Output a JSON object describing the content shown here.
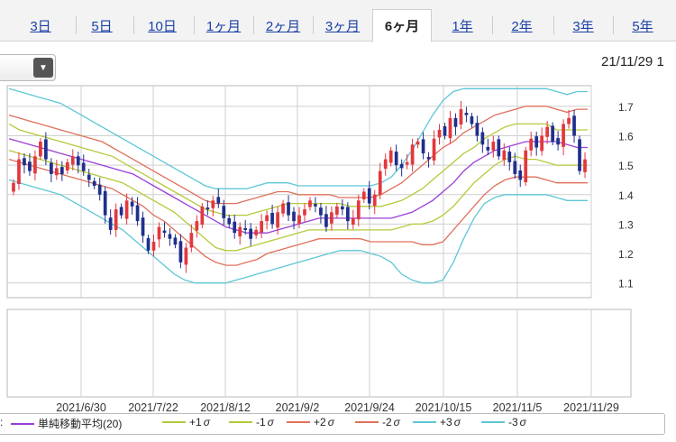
{
  "tabs": [
    {
      "label": "3日",
      "active": false
    },
    {
      "label": "5日",
      "active": false
    },
    {
      "label": "10日",
      "active": false
    },
    {
      "label": "1ヶ月",
      "active": false
    },
    {
      "label": "2ヶ月",
      "active": false
    },
    {
      "label": "3ヶ月",
      "active": false
    },
    {
      "label": "6ヶ月",
      "active": true
    },
    {
      "label": "1年",
      "active": false
    },
    {
      "label": "2年",
      "active": false
    },
    {
      "label": "3年",
      "active": false
    },
    {
      "label": "5年",
      "active": false
    }
  ],
  "datetime": "21/11/29 1",
  "dropdown_icon": "triangle-down-icon",
  "legend": {
    "prefix": ":",
    "items": [
      {
        "label": "単純移動平均(20)",
        "sigma": "",
        "color": "#9b3fd6"
      },
      {
        "label": "+1",
        "sigma": "σ",
        "color": "#b7c93a"
      },
      {
        "label": "-1",
        "sigma": "σ",
        "color": "#b7c93a"
      },
      {
        "label": "+2",
        "sigma": "σ",
        "color": "#e0705a"
      },
      {
        "label": "-2",
        "sigma": "σ",
        "color": "#e0705a"
      },
      {
        "label": "+3",
        "sigma": "σ",
        "color": "#5ec6d6"
      },
      {
        "label": "-3",
        "sigma": "σ",
        "color": "#5ec6d6"
      }
    ]
  },
  "chart_data": {
    "type": "candlestick",
    "x_ticks": [
      "2021/6/30",
      "2021/7/22",
      "2021/8/12",
      "2021/9/2",
      "2021/9/24",
      "2021/10/15",
      "2021/11/5",
      "2021/11/29"
    ],
    "y_ticks": [
      1.1,
      1.2,
      1.3,
      1.4,
      1.5,
      1.6,
      1.7
    ],
    "ylim": [
      1.05,
      1.77
    ],
    "grid": true,
    "colors": {
      "up": "#e2383d",
      "down": "#1f2f8c"
    },
    "close": [
      1.44,
      1.52,
      1.5,
      1.48,
      1.53,
      1.58,
      1.52,
      1.47,
      1.49,
      1.47,
      1.51,
      1.53,
      1.5,
      1.48,
      1.45,
      1.43,
      1.4,
      1.33,
      1.28,
      1.35,
      1.33,
      1.38,
      1.36,
      1.31,
      1.26,
      1.21,
      1.24,
      1.29,
      1.27,
      1.25,
      1.23,
      1.17,
      1.22,
      1.27,
      1.31,
      1.36,
      1.35,
      1.38,
      1.37,
      1.32,
      1.3,
      1.27,
      1.29,
      1.28,
      1.25,
      1.28,
      1.31,
      1.33,
      1.3,
      1.34,
      1.37,
      1.33,
      1.31,
      1.33,
      1.35,
      1.38,
      1.36,
      1.33,
      1.29,
      1.34,
      1.36,
      1.35,
      1.31,
      1.32,
      1.38,
      1.41,
      1.37,
      1.4,
      1.48,
      1.52,
      1.55,
      1.5,
      1.49,
      1.51,
      1.57,
      1.58,
      1.54,
      1.52,
      1.59,
      1.62,
      1.6,
      1.66,
      1.63,
      1.69,
      1.67,
      1.64,
      1.6,
      1.57,
      1.55,
      1.58,
      1.53,
      1.55,
      1.51,
      1.47,
      1.45,
      1.55,
      1.59,
      1.56,
      1.6,
      1.63,
      1.58,
      1.57,
      1.64,
      1.66,
      1.6,
      1.48,
      1.52
    ],
    "bands": {
      "sma20": [
        1.59,
        1.58,
        1.57,
        1.56,
        1.55,
        1.54,
        1.53,
        1.52,
        1.51,
        1.5,
        1.49,
        1.48,
        1.47,
        1.45,
        1.43,
        1.41,
        1.39,
        1.37,
        1.35,
        1.33,
        1.31,
        1.29,
        1.28,
        1.27,
        1.27,
        1.27,
        1.28,
        1.29,
        1.3,
        1.31,
        1.32,
        1.32,
        1.32,
        1.32,
        1.32,
        1.32,
        1.32,
        1.32,
        1.33,
        1.34,
        1.36,
        1.38,
        1.41,
        1.44,
        1.48,
        1.51,
        1.53,
        1.55,
        1.56,
        1.57,
        1.58,
        1.58,
        1.58,
        1.58,
        1.57,
        1.56,
        1.56
      ],
      "plus1": [
        1.64,
        1.62,
        1.61,
        1.6,
        1.59,
        1.58,
        1.57,
        1.56,
        1.55,
        1.54,
        1.53,
        1.51,
        1.49,
        1.47,
        1.45,
        1.43,
        1.41,
        1.39,
        1.37,
        1.35,
        1.34,
        1.33,
        1.33,
        1.33,
        1.34,
        1.35,
        1.36,
        1.37,
        1.37,
        1.37,
        1.37,
        1.37,
        1.37,
        1.36,
        1.36,
        1.36,
        1.36,
        1.37,
        1.38,
        1.4,
        1.42,
        1.45,
        1.48,
        1.51,
        1.54,
        1.56,
        1.59,
        1.61,
        1.63,
        1.64,
        1.64,
        1.64,
        1.64,
        1.62,
        1.62,
        1.62,
        1.62
      ],
      "minus1": [
        1.55,
        1.54,
        1.53,
        1.52,
        1.51,
        1.5,
        1.49,
        1.48,
        1.47,
        1.46,
        1.45,
        1.44,
        1.42,
        1.4,
        1.38,
        1.36,
        1.34,
        1.31,
        1.28,
        1.25,
        1.22,
        1.21,
        1.21,
        1.22,
        1.23,
        1.24,
        1.25,
        1.26,
        1.27,
        1.28,
        1.28,
        1.28,
        1.28,
        1.28,
        1.28,
        1.28,
        1.28,
        1.28,
        1.29,
        1.3,
        1.3,
        1.31,
        1.33,
        1.36,
        1.4,
        1.44,
        1.47,
        1.5,
        1.52,
        1.53,
        1.52,
        1.52,
        1.51,
        1.5,
        1.5,
        1.5,
        1.5
      ],
      "plus2": [
        1.67,
        1.66,
        1.65,
        1.64,
        1.63,
        1.62,
        1.61,
        1.6,
        1.59,
        1.58,
        1.56,
        1.54,
        1.52,
        1.5,
        1.48,
        1.46,
        1.44,
        1.42,
        1.4,
        1.38,
        1.37,
        1.37,
        1.37,
        1.38,
        1.39,
        1.4,
        1.41,
        1.41,
        1.4,
        1.4,
        1.4,
        1.4,
        1.39,
        1.39,
        1.39,
        1.39,
        1.4,
        1.42,
        1.44,
        1.47,
        1.5,
        1.53,
        1.56,
        1.58,
        1.61,
        1.63,
        1.65,
        1.67,
        1.68,
        1.69,
        1.7,
        1.7,
        1.7,
        1.69,
        1.68,
        1.69,
        1.69
      ],
      "minus2": [
        1.52,
        1.51,
        1.5,
        1.49,
        1.48,
        1.47,
        1.46,
        1.45,
        1.44,
        1.43,
        1.42,
        1.4,
        1.38,
        1.36,
        1.33,
        1.31,
        1.28,
        1.25,
        1.22,
        1.19,
        1.17,
        1.16,
        1.16,
        1.17,
        1.18,
        1.2,
        1.21,
        1.22,
        1.23,
        1.24,
        1.25,
        1.25,
        1.25,
        1.25,
        1.25,
        1.24,
        1.24,
        1.24,
        1.24,
        1.24,
        1.23,
        1.23,
        1.24,
        1.28,
        1.32,
        1.36,
        1.4,
        1.43,
        1.45,
        1.46,
        1.46,
        1.46,
        1.45,
        1.44,
        1.44,
        1.44,
        1.44
      ],
      "plus3": [
        1.76,
        1.75,
        1.74,
        1.73,
        1.72,
        1.71,
        1.69,
        1.67,
        1.65,
        1.63,
        1.61,
        1.59,
        1.57,
        1.55,
        1.53,
        1.51,
        1.49,
        1.47,
        1.45,
        1.43,
        1.42,
        1.42,
        1.42,
        1.42,
        1.43,
        1.44,
        1.44,
        1.44,
        1.43,
        1.43,
        1.43,
        1.43,
        1.43,
        1.43,
        1.43,
        1.43,
        1.44,
        1.46,
        1.5,
        1.55,
        1.61,
        1.67,
        1.72,
        1.75,
        1.76,
        1.76,
        1.76,
        1.76,
        1.76,
        1.76,
        1.76,
        1.76,
        1.76,
        1.75,
        1.74,
        1.75,
        1.75
      ],
      "minus3": [
        1.45,
        1.44,
        1.43,
        1.42,
        1.41,
        1.4,
        1.38,
        1.36,
        1.34,
        1.32,
        1.3,
        1.28,
        1.25,
        1.22,
        1.19,
        1.16,
        1.13,
        1.11,
        1.1,
        1.1,
        1.1,
        1.1,
        1.11,
        1.12,
        1.13,
        1.14,
        1.15,
        1.16,
        1.17,
        1.18,
        1.19,
        1.2,
        1.21,
        1.21,
        1.21,
        1.2,
        1.19,
        1.17,
        1.13,
        1.11,
        1.1,
        1.1,
        1.11,
        1.17,
        1.25,
        1.32,
        1.37,
        1.39,
        1.4,
        1.4,
        1.4,
        1.4,
        1.4,
        1.39,
        1.38,
        1.38,
        1.38
      ]
    }
  }
}
